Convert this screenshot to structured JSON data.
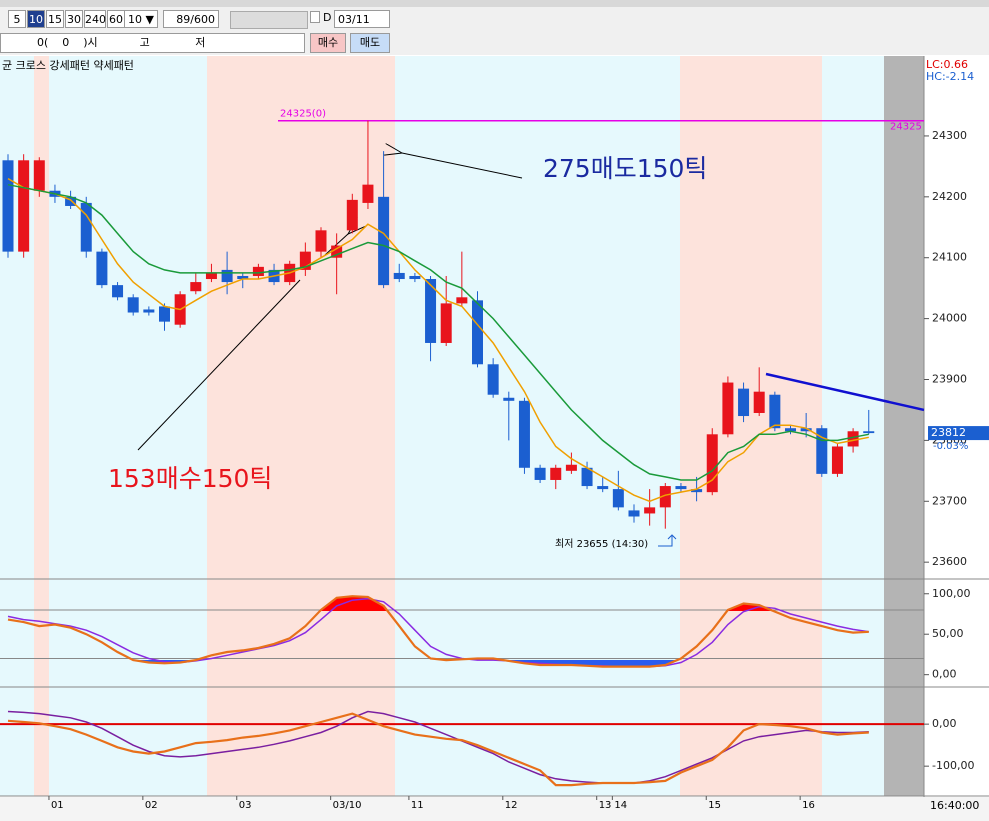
{
  "toolbar": {
    "periods": [
      5,
      10,
      15,
      30,
      240,
      60
    ],
    "active": 10,
    "period_select": 10,
    "count": "89/600",
    "day_check": "D",
    "date": "03/11"
  },
  "order_row": {
    "text": "0(    0    )시            고             저",
    "buy": "매수",
    "sell": "매도"
  },
  "legend_text": "균 크로스 강세패턴  약세패턴",
  "chart_data": [
    {
      "type": "candlestick",
      "categories": [
        null,
        null,
        null,
        "01",
        null,
        null,
        null,
        null,
        null,
        "02",
        null,
        null,
        null,
        null,
        null,
        "03",
        null,
        null,
        null,
        null,
        null,
        "03/10",
        null,
        null,
        null,
        null,
        "11",
        null,
        null,
        null,
        null,
        null,
        "12",
        null,
        null,
        null,
        null,
        null,
        "13",
        "14",
        null,
        null,
        null,
        null,
        null,
        "15",
        null,
        null,
        null,
        null,
        null,
        "16",
        null,
        null,
        null,
        null
      ],
      "open": [
        24260,
        24110,
        24210,
        24210,
        24200,
        24190,
        24110,
        24055,
        24035,
        24015,
        24020,
        23990,
        24045,
        24065,
        24080,
        24070,
        24070,
        24080,
        24060,
        24080,
        24110,
        24100,
        24145,
        24190,
        24200,
        24075,
        24070,
        24065,
        23960,
        24025,
        24030,
        23925,
        23870,
        23865,
        23755,
        23735,
        23750,
        23755,
        23725,
        23720,
        23685,
        23680,
        23690,
        23725,
        23720,
        23715,
        23810,
        23885,
        23845,
        23875,
        23820,
        23820,
        23820,
        23745,
        23790,
        23815
      ],
      "high": [
        24270,
        24270,
        24265,
        24220,
        24210,
        24200,
        24115,
        24060,
        24040,
        24020,
        24025,
        24045,
        24075,
        24090,
        24110,
        24075,
        24090,
        24090,
        24095,
        24125,
        24150,
        24140,
        24205,
        24325,
        24275,
        24090,
        24075,
        24070,
        24070,
        24110,
        24045,
        23935,
        23880,
        23870,
        23760,
        23760,
        23780,
        23765,
        23740,
        23750,
        23695,
        23720,
        23730,
        23730,
        23740,
        23820,
        23905,
        23895,
        23920,
        23880,
        23825,
        23845,
        23825,
        23795,
        23820,
        23850
      ],
      "low": [
        24100,
        24100,
        24200,
        24190,
        24180,
        24100,
        24050,
        24030,
        24005,
        24005,
        23980,
        23985,
        24040,
        24060,
        24040,
        24050,
        24065,
        24055,
        24055,
        24070,
        24100,
        24040,
        24140,
        24180,
        24050,
        24060,
        24060,
        23930,
        23955,
        24020,
        23920,
        23870,
        23800,
        23745,
        23730,
        23720,
        23745,
        23720,
        23715,
        23685,
        23665,
        23660,
        23655,
        23715,
        23700,
        23710,
        23805,
        23830,
        23840,
        23815,
        23810,
        23805,
        23740,
        23740,
        23780,
        23810
      ],
      "close": [
        24110,
        24260,
        24260,
        24200,
        24185,
        24110,
        24055,
        24035,
        24010,
        24010,
        23995,
        24040,
        24060,
        24075,
        24060,
        24065,
        24085,
        24060,
        24090,
        24110,
        24145,
        24120,
        24195,
        24220,
        24055,
        24065,
        24065,
        23960,
        24025,
        24035,
        23925,
        23875,
        23865,
        23755,
        23735,
        23755,
        23760,
        23725,
        23720,
        23690,
        23675,
        23690,
        23725,
        23720,
        23715,
        23810,
        23895,
        23840,
        23880,
        23820,
        23815,
        23815,
        23745,
        23790,
        23815,
        23812
      ],
      "up_color": "#e8141c",
      "down_color": "#1b5fd0",
      "lines": [
        {
          "color": "#f0a000",
          "values": [
            24230,
            24215,
            24210,
            24205,
            24195,
            24170,
            24130,
            24090,
            24060,
            24040,
            24020,
            24015,
            24030,
            24045,
            24055,
            24065,
            24065,
            24070,
            24075,
            24085,
            24100,
            24115,
            24130,
            24155,
            24140,
            24110,
            24080,
            24055,
            24030,
            24020,
            23990,
            23960,
            23920,
            23880,
            23830,
            23790,
            23770,
            23755,
            23740,
            23725,
            23710,
            23700,
            23710,
            23715,
            23720,
            23735,
            23765,
            23780,
            23810,
            23825,
            23825,
            23820,
            23805,
            23795,
            23800,
            23805
          ]
        },
        {
          "color": "#1a9a3a",
          "values": [
            24220,
            24215,
            24210,
            24205,
            24200,
            24190,
            24170,
            24140,
            24110,
            24090,
            24080,
            24075,
            24075,
            24075,
            24075,
            24075,
            24075,
            24078,
            24080,
            24085,
            24095,
            24105,
            24115,
            24125,
            24120,
            24110,
            24095,
            24080,
            24060,
            24050,
            24025,
            24000,
            23970,
            23940,
            23910,
            23880,
            23850,
            23825,
            23800,
            23780,
            23760,
            23745,
            23740,
            23735,
            23735,
            23750,
            23780,
            23790,
            23810,
            23810,
            23815,
            23810,
            23800,
            23800,
            23805,
            23810
          ]
        }
      ],
      "ylim": [
        23574,
        24428
      ],
      "yticks": [
        23600,
        23700,
        23800,
        23900,
        24000,
        24100,
        24200,
        24300
      ],
      "hline": {
        "value": 24325,
        "label": "24325(0)",
        "color": "#e600e6"
      },
      "last": {
        "value": 23812,
        "change": "-0.03%"
      },
      "trendline": {
        "values": [
          23909,
          23850
        ],
        "color": "#1010d0"
      },
      "low_note": "최저 23655 (14:30)",
      "annotations": [
        "275매도150틱",
        "153매수150틱"
      ],
      "indicators": [
        "LC:0.66",
        "HC:-2.14"
      ],
      "time": "16:40:00"
    },
    {
      "type": "line",
      "lines": [
        {
          "color": "#e8701a",
          "values": [
            68,
            65,
            60,
            62,
            58,
            50,
            40,
            28,
            18,
            15,
            14,
            15,
            18,
            24,
            28,
            30,
            33,
            38,
            45,
            60,
            80,
            95,
            97,
            96,
            85,
            60,
            35,
            20,
            18,
            19,
            20,
            20,
            17,
            14,
            12,
            12,
            12,
            11,
            10,
            10,
            10,
            10,
            12,
            20,
            35,
            55,
            80,
            88,
            86,
            78,
            70,
            65,
            60,
            55,
            52,
            53
          ]
        },
        {
          "color": "#8a2be2",
          "values": [
            72,
            68,
            66,
            63,
            60,
            55,
            47,
            37,
            27,
            20,
            16,
            15,
            17,
            20,
            24,
            28,
            32,
            36,
            42,
            52,
            68,
            85,
            92,
            94,
            90,
            75,
            55,
            35,
            25,
            20,
            18,
            18,
            17,
            15,
            14,
            13,
            12,
            11,
            11,
            10,
            10,
            10,
            11,
            15,
            25,
            40,
            62,
            78,
            84,
            82,
            75,
            70,
            65,
            60,
            56,
            53
          ]
        }
      ],
      "ylim": [
        -14,
        117
      ],
      "yticks": [
        {
          "value": 0,
          "label": "0,00"
        },
        {
          "value": 50,
          "label": "50,00"
        },
        {
          "value": 100,
          "label": "100,00"
        }
      ],
      "levels": [
        80,
        20
      ],
      "fill": {
        "above": "#ff0000",
        "below": "#2a5cf0"
      }
    },
    {
      "type": "line",
      "lines": [
        {
          "color": "#e8701a",
          "values": [
            8,
            5,
            2,
            -5,
            -12,
            -25,
            -40,
            -55,
            -65,
            -70,
            -65,
            -55,
            -45,
            -42,
            -38,
            -32,
            -28,
            -22,
            -15,
            -5,
            5,
            15,
            25,
            10,
            -5,
            -15,
            -25,
            -30,
            -35,
            -38,
            -50,
            -65,
            -80,
            -95,
            -110,
            -145,
            -145,
            -142,
            -140,
            -140,
            -140,
            -138,
            -135,
            -115,
            -100,
            -85,
            -55,
            -15,
            0,
            -2,
            -5,
            -10,
            -20,
            -25,
            -22,
            -20
          ]
        },
        {
          "color": "#7a1fa0",
          "values": [
            30,
            28,
            25,
            20,
            15,
            5,
            -10,
            -30,
            -50,
            -65,
            -75,
            -78,
            -75,
            -70,
            -65,
            -60,
            -55,
            -48,
            -40,
            -30,
            -20,
            -5,
            15,
            30,
            25,
            15,
            5,
            -10,
            -25,
            -40,
            -55,
            -70,
            -90,
            -105,
            -120,
            -130,
            -135,
            -138,
            -140,
            -140,
            -140,
            -135,
            -125,
            -110,
            -95,
            -80,
            -60,
            -40,
            -30,
            -25,
            -20,
            -15,
            -18,
            -20,
            -20,
            -18
          ]
        }
      ],
      "ylim": [
        -171,
        86
      ],
      "yticks": [
        {
          "value": -100,
          "label": "-100,00"
        },
        {
          "value": 0,
          "label": "0,00"
        }
      ],
      "baseline": {
        "value": 0,
        "color": "#e00000"
      }
    }
  ]
}
